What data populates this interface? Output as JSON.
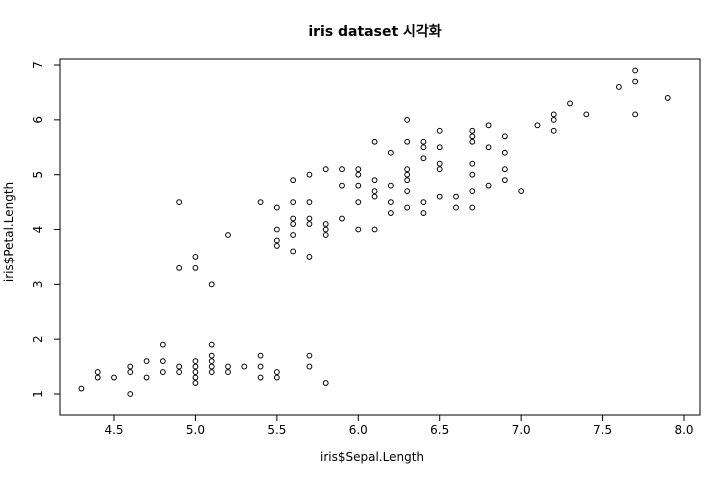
{
  "chart_data": {
    "type": "scatter",
    "title": "iris dataset 시각화",
    "xlabel": "iris$Sepal.Length",
    "ylabel": "iris$Petal.Length",
    "xlim": [
      4.3,
      7.9
    ],
    "ylim": [
      1.0,
      6.9
    ],
    "xticks": [
      "4.5",
      "5.0",
      "5.5",
      "6.0",
      "6.5",
      "7.0",
      "7.5",
      "8.0"
    ],
    "yticks": [
      "1",
      "2",
      "3",
      "4",
      "5",
      "6",
      "7"
    ],
    "grid": false,
    "marker": "open-circle",
    "point_color": "#000000",
    "points": [
      [
        4.3,
        1.1
      ],
      [
        4.4,
        1.3
      ],
      [
        4.4,
        1.4
      ],
      [
        4.5,
        1.3
      ],
      [
        4.6,
        1.0
      ],
      [
        4.6,
        1.4
      ],
      [
        4.6,
        1.5
      ],
      [
        4.7,
        1.3
      ],
      [
        4.7,
        1.6
      ],
      [
        4.8,
        1.4
      ],
      [
        4.8,
        1.6
      ],
      [
        4.8,
        1.9
      ],
      [
        4.9,
        1.4
      ],
      [
        4.9,
        1.5
      ],
      [
        4.9,
        3.3
      ],
      [
        4.9,
        4.5
      ],
      [
        5.0,
        1.2
      ],
      [
        5.0,
        1.3
      ],
      [
        5.0,
        1.4
      ],
      [
        5.0,
        1.5
      ],
      [
        5.0,
        1.6
      ],
      [
        5.0,
        3.3
      ],
      [
        5.0,
        3.5
      ],
      [
        5.1,
        1.4
      ],
      [
        5.1,
        1.5
      ],
      [
        5.1,
        1.6
      ],
      [
        5.1,
        1.7
      ],
      [
        5.1,
        1.9
      ],
      [
        5.1,
        3.0
      ],
      [
        5.2,
        1.4
      ],
      [
        5.2,
        1.5
      ],
      [
        5.2,
        3.9
      ],
      [
        5.3,
        1.5
      ],
      [
        5.4,
        1.3
      ],
      [
        5.4,
        1.5
      ],
      [
        5.4,
        1.7
      ],
      [
        5.4,
        4.5
      ],
      [
        5.5,
        1.3
      ],
      [
        5.5,
        1.4
      ],
      [
        5.5,
        3.7
      ],
      [
        5.5,
        3.8
      ],
      [
        5.5,
        4.0
      ],
      [
        5.5,
        4.4
      ],
      [
        5.6,
        3.6
      ],
      [
        5.6,
        3.9
      ],
      [
        5.6,
        4.1
      ],
      [
        5.6,
        4.2
      ],
      [
        5.6,
        4.5
      ],
      [
        5.6,
        4.9
      ],
      [
        5.7,
        1.5
      ],
      [
        5.7,
        1.7
      ],
      [
        5.7,
        3.5
      ],
      [
        5.7,
        4.1
      ],
      [
        5.7,
        4.2
      ],
      [
        5.7,
        4.5
      ],
      [
        5.7,
        5.0
      ],
      [
        5.8,
        1.2
      ],
      [
        5.8,
        3.9
      ],
      [
        5.8,
        4.0
      ],
      [
        5.8,
        4.1
      ],
      [
        5.8,
        5.1
      ],
      [
        5.9,
        4.2
      ],
      [
        5.9,
        4.8
      ],
      [
        5.9,
        5.1
      ],
      [
        6.0,
        4.0
      ],
      [
        6.0,
        4.5
      ],
      [
        6.0,
        4.8
      ],
      [
        6.0,
        5.0
      ],
      [
        6.0,
        5.1
      ],
      [
        6.1,
        4.0
      ],
      [
        6.1,
        4.6
      ],
      [
        6.1,
        4.7
      ],
      [
        6.1,
        4.9
      ],
      [
        6.1,
        5.6
      ],
      [
        6.2,
        4.3
      ],
      [
        6.2,
        4.5
      ],
      [
        6.2,
        4.8
      ],
      [
        6.2,
        5.4
      ],
      [
        6.3,
        4.4
      ],
      [
        6.3,
        4.7
      ],
      [
        6.3,
        4.9
      ],
      [
        6.3,
        5.0
      ],
      [
        6.3,
        5.1
      ],
      [
        6.3,
        5.6
      ],
      [
        6.3,
        6.0
      ],
      [
        6.4,
        4.3
      ],
      [
        6.4,
        4.5
      ],
      [
        6.4,
        5.3
      ],
      [
        6.4,
        5.5
      ],
      [
        6.4,
        5.6
      ],
      [
        6.5,
        4.6
      ],
      [
        6.5,
        5.1
      ],
      [
        6.5,
        5.2
      ],
      [
        6.5,
        5.5
      ],
      [
        6.5,
        5.8
      ],
      [
        6.6,
        4.4
      ],
      [
        6.6,
        4.6
      ],
      [
        6.7,
        4.4
      ],
      [
        6.7,
        4.7
      ],
      [
        6.7,
        5.0
      ],
      [
        6.7,
        5.2
      ],
      [
        6.7,
        5.6
      ],
      [
        6.7,
        5.7
      ],
      [
        6.7,
        5.8
      ],
      [
        6.8,
        4.8
      ],
      [
        6.8,
        5.5
      ],
      [
        6.8,
        5.9
      ],
      [
        6.9,
        4.9
      ],
      [
        6.9,
        5.1
      ],
      [
        6.9,
        5.4
      ],
      [
        6.9,
        5.7
      ],
      [
        7.0,
        4.7
      ],
      [
        7.1,
        5.9
      ],
      [
        7.2,
        5.8
      ],
      [
        7.2,
        6.0
      ],
      [
        7.2,
        6.1
      ],
      [
        7.3,
        6.3
      ],
      [
        7.4,
        6.1
      ],
      [
        7.6,
        6.6
      ],
      [
        7.7,
        6.1
      ],
      [
        7.7,
        6.7
      ],
      [
        7.7,
        6.9
      ],
      [
        7.9,
        6.4
      ]
    ]
  }
}
